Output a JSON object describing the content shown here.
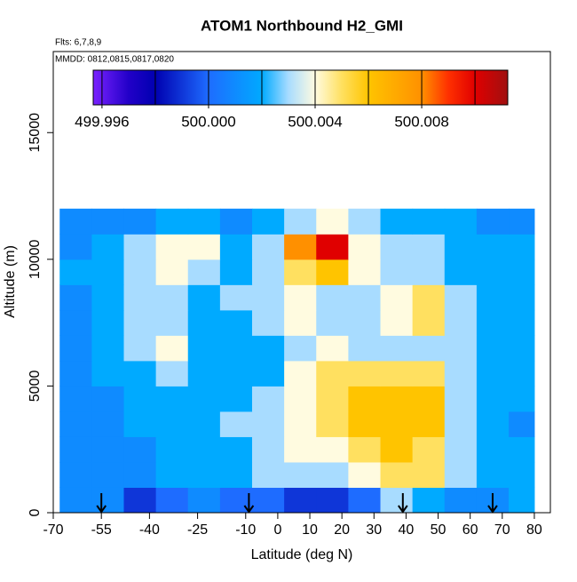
{
  "chart_data": {
    "type": "heatmap",
    "title": "ATOM1 Northbound H2_GMI",
    "subtitle_lines": [
      "Flts: 6,7,8,9",
      "MMDD: 0812,0815,0817,0820"
    ],
    "x_label": "Latitude (deg N)",
    "y_label": "Altitude (m)",
    "xlim": [
      -70,
      85
    ],
    "xticks": [
      -70,
      -55,
      -40,
      -25,
      -10,
      0,
      10,
      20,
      30,
      40,
      50,
      60,
      70,
      80
    ],
    "ylim": [
      0,
      18200
    ],
    "yticks": [
      0,
      5000,
      10000,
      15000
    ],
    "x_edges": [
      -68,
      -58,
      -48,
      -38,
      -28,
      -18,
      -8,
      2,
      12,
      22,
      32,
      42,
      52,
      62,
      72,
      80
    ],
    "y_edges": [
      0,
      1000,
      2000,
      3000,
      4000,
      5000,
      6000,
      7000,
      8000,
      9000,
      10000,
      11000,
      12000
    ],
    "values": [
      [
        500.001,
        500.001,
        499.999,
        500.0,
        500.001,
        500.0,
        500.0,
        499.999,
        499.999,
        500.0,
        500.003,
        500.002,
        500.001,
        500.001,
        500.002
      ],
      [
        500.001,
        500.001,
        500.001,
        500.002,
        500.002,
        500.002,
        500.003,
        500.003,
        500.003,
        500.004,
        500.005,
        500.005,
        500.003,
        500.002,
        500.002
      ],
      [
        500.001,
        500.001,
        500.001,
        500.002,
        500.002,
        500.002,
        500.003,
        500.004,
        500.004,
        500.005,
        500.006,
        500.005,
        500.003,
        500.002,
        500.002
      ],
      [
        500.001,
        500.001,
        500.002,
        500.002,
        500.002,
        500.003,
        500.003,
        500.004,
        500.005,
        500.006,
        500.006,
        500.006,
        500.003,
        500.002,
        500.001
      ],
      [
        500.001,
        500.001,
        500.002,
        500.002,
        500.002,
        500.002,
        500.003,
        500.004,
        500.005,
        500.006,
        500.006,
        500.006,
        500.003,
        500.002,
        500.002
      ],
      [
        500.001,
        500.002,
        500.002,
        500.003,
        500.002,
        500.002,
        500.002,
        500.004,
        500.005,
        500.005,
        500.005,
        500.005,
        500.003,
        500.002,
        500.002
      ],
      [
        500.001,
        500.002,
        500.003,
        500.004,
        500.002,
        500.002,
        500.002,
        500.003,
        500.004,
        500.003,
        500.003,
        500.003,
        500.003,
        500.002,
        500.002
      ],
      [
        500.001,
        500.002,
        500.003,
        500.003,
        500.002,
        500.002,
        500.003,
        500.004,
        500.003,
        500.003,
        500.004,
        500.005,
        500.003,
        500.002,
        500.002
      ],
      [
        500.001,
        500.002,
        500.003,
        500.003,
        500.002,
        500.003,
        500.003,
        500.004,
        500.003,
        500.003,
        500.004,
        500.005,
        500.003,
        500.002,
        500.002
      ],
      [
        500.002,
        500.002,
        500.003,
        500.004,
        500.003,
        500.002,
        500.003,
        500.005,
        500.006,
        500.004,
        500.003,
        500.003,
        500.002,
        500.002,
        500.002
      ],
      [
        500.001,
        500.002,
        500.003,
        500.004,
        500.004,
        500.002,
        500.003,
        500.008,
        500.01,
        500.004,
        500.003,
        500.003,
        500.002,
        500.002,
        500.002
      ],
      [
        500.001,
        500.001,
        500.001,
        500.002,
        500.002,
        500.001,
        500.002,
        500.003,
        500.004,
        500.003,
        500.002,
        500.002,
        500.002,
        500.001,
        500.001
      ]
    ],
    "colorscale": [
      [
        499.99567,
        "#7a22ff"
      ],
      [
        499.997,
        "#2200c8"
      ],
      [
        499.998,
        "#0000b0"
      ],
      [
        500.0,
        "#1e6cff"
      ],
      [
        500.002,
        "#00aaff"
      ],
      [
        500.003,
        "#a8dcff"
      ],
      [
        500.004,
        "#fffbe0"
      ],
      [
        500.005,
        "#ffe060"
      ],
      [
        500.006,
        "#ffc400"
      ],
      [
        500.008,
        "#ff9000"
      ],
      [
        500.009,
        "#ff3000"
      ],
      [
        500.01,
        "#e00000"
      ],
      [
        500.01123,
        "#a01010"
      ]
    ],
    "colorbar_lim": [
      499.99567,
      500.01123
    ],
    "colorbar_ticks": [
      499.996,
      {
        "value": 500,
        "label": "500.000"
      },
      500.004,
      500.008
    ],
    "colorbar_breaks": [
      499.996,
      499.998,
      500.0,
      500.002,
      500.004,
      500.006,
      500.008,
      500.01
    ],
    "arrow_x": [
      -55,
      -9,
      39,
      67
    ]
  }
}
